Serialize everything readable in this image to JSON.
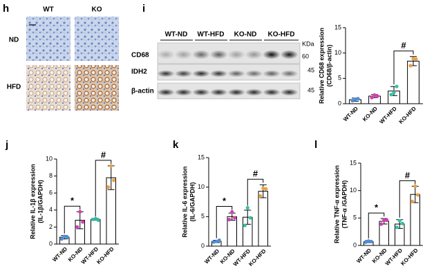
{
  "panel_labels": [
    "h",
    "i",
    "j",
    "k",
    "l"
  ],
  "histology": {
    "columns": [
      "WT",
      "KO"
    ],
    "rows": [
      "ND",
      "HFD"
    ]
  },
  "blot": {
    "lanes": [
      "WT-ND",
      "WT-HFD",
      "KO-ND",
      "KO-HFD"
    ],
    "proteins": [
      "CD68",
      "IDH2",
      "β-actin"
    ],
    "unit": "KDa",
    "markers": [
      60,
      45,
      45
    ]
  },
  "chart_data": [
    {
      "type": "bar",
      "y_label": [
        "Relative CD68 expression",
        "(CD68/β-actin)"
      ],
      "categories": [
        "WT-ND",
        "KO-ND",
        "WT-HFD",
        "KO-HFD"
      ],
      "values": [
        0.8,
        1.5,
        2.5,
        8.4
      ],
      "errors": [
        0.3,
        0.3,
        0.9,
        0.9
      ],
      "points": [
        [
          0.6,
          0.9,
          1.0
        ],
        [
          1.2,
          1.7,
          1.5
        ],
        [
          1.8,
          2.2,
          3.4
        ],
        [
          7.5,
          8.9,
          8.8
        ]
      ],
      "point_colors": [
        "#4f8fd6",
        "#d23fb2",
        "#36bfa4",
        "#e7a043"
      ],
      "ylim": [
        0,
        15
      ],
      "yticks": [
        0,
        5,
        10,
        15
      ],
      "annotations": [
        {
          "text": "#",
          "between": [
            2,
            3
          ]
        }
      ]
    },
    {
      "type": "bar",
      "y_label": [
        "Relative IL-1β expression",
        "(IL-1β/GAPDH)"
      ],
      "categories": [
        "WT-ND",
        "KO-ND",
        "WT-HFD",
        "KO-HFD"
      ],
      "values": [
        0.8,
        2.8,
        2.9,
        7.8
      ],
      "errors": [
        0.2,
        1.0,
        0.1,
        1.4
      ],
      "points": [
        [
          0.6,
          0.9,
          0.8
        ],
        [
          2.0,
          3.8,
          2.6
        ],
        [
          2.9,
          3.0,
          2.8
        ],
        [
          6.7,
          9.2,
          7.5
        ]
      ],
      "point_colors": [
        "#4f8fd6",
        "#d23fb2",
        "#36bfa4",
        "#e7a043"
      ],
      "ylim": [
        0,
        10
      ],
      "yticks": [
        0,
        2,
        4,
        6,
        8,
        10
      ],
      "annotations": [
        {
          "text": "*",
          "between": [
            0,
            1
          ]
        },
        {
          "text": "#",
          "between": [
            2,
            3
          ]
        }
      ]
    },
    {
      "type": "bar",
      "y_label": [
        "Relative IL-6 expression",
        "(IL-6/GAPDH)"
      ],
      "categories": [
        "WT-ND",
        "KO-ND",
        "WT-HFD",
        "KO-HFD"
      ],
      "values": [
        0.8,
        5.0,
        4.9,
        9.3
      ],
      "errors": [
        0.2,
        0.6,
        1.2,
        1.1
      ],
      "points": [
        [
          0.7,
          0.8,
          1.0
        ],
        [
          4.5,
          5.8,
          4.8
        ],
        [
          3.5,
          6.5,
          4.8
        ],
        [
          8.5,
          9.8,
          9.7
        ]
      ],
      "point_colors": [
        "#4f8fd6",
        "#d23fb2",
        "#36bfa4",
        "#e7a043"
      ],
      "ylim": [
        0,
        15
      ],
      "yticks": [
        0,
        5,
        10,
        15
      ],
      "annotations": [
        {
          "text": "*",
          "between": [
            0,
            1
          ]
        },
        {
          "text": "#",
          "between": [
            2,
            3
          ]
        }
      ]
    },
    {
      "type": "bar",
      "y_label": [
        "Relative TNF-α expression",
        "(TNF-α /GAPDH)"
      ],
      "categories": [
        "WT-ND",
        "KO-ND",
        "WT-HFD",
        "KO-HFD"
      ],
      "values": [
        0.7,
        4.4,
        3.9,
        9.3
      ],
      "errors": [
        0.2,
        0.5,
        0.8,
        1.5
      ],
      "points": [
        [
          0.6,
          0.8,
          0.7
        ],
        [
          3.9,
          4.6,
          4.6
        ],
        [
          3.3,
          4.5,
          4.0
        ],
        [
          8.0,
          10.8,
          9.2
        ]
      ],
      "point_colors": [
        "#4f8fd6",
        "#d23fb2",
        "#36bfa4",
        "#e7a043"
      ],
      "ylim": [
        0,
        15
      ],
      "yticks": [
        0,
        5,
        10,
        15
      ],
      "annotations": [
        {
          "text": "*",
          "between": [
            0,
            1
          ]
        },
        {
          "text": "#",
          "between": [
            2,
            3
          ]
        }
      ]
    }
  ]
}
